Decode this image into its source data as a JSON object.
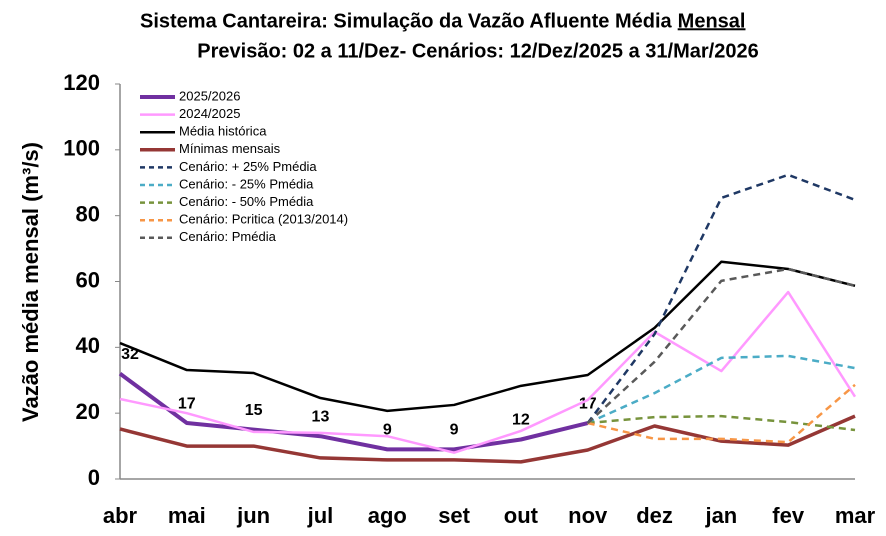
{
  "chart_data": {
    "type": "line",
    "title": "Sistema Cantareira: Simulação da Vazão Afluente Média",
    "title_underlined": "Mensal",
    "subtitle": "Previsão: 02 a 11/Dez- Cenários: 12/Dez/2025 a 31/Mar/2026",
    "y_label": "Vazão média mensal (m³/s)",
    "categories": [
      "abr",
      "mai",
      "jun",
      "jul",
      "ago",
      "set",
      "out",
      "nov",
      "dez",
      "jan",
      "fev",
      "mar"
    ],
    "ylim": [
      0,
      120
    ],
    "yticks": [
      0,
      20,
      40,
      60,
      80,
      100,
      120
    ],
    "grid": false,
    "legend": "upper left",
    "series": [
      {
        "name": "2025/2026",
        "color": "#7030a0",
        "width": 4,
        "dashed": false,
        "values": [
          32,
          17,
          15,
          13,
          9,
          9,
          12,
          17,
          null,
          null,
          null,
          null
        ],
        "value_labels": [
          "32",
          "17",
          "15",
          "13",
          "9",
          "9",
          "12",
          "17",
          null,
          null,
          null,
          null
        ]
      },
      {
        "name": "2024/2025",
        "color": "#ff99ff",
        "width": 2.5,
        "dashed": false,
        "values": [
          24.3,
          20,
          14.3,
          14,
          13,
          8,
          14.6,
          24,
          44.7,
          32.8,
          56.8,
          25
        ]
      },
      {
        "name": "Média histórica",
        "color": "#000000",
        "width": 2.5,
        "dashed": false,
        "values": [
          41.3,
          33.1,
          32.2,
          24.6,
          20.7,
          22.5,
          28.3,
          31.6,
          45.9,
          66,
          63.8,
          58.7
        ]
      },
      {
        "name": "Mínimas mensais",
        "color": "#953735",
        "width": 3.5,
        "dashed": false,
        "values": [
          15.2,
          10,
          10,
          6.4,
          5.8,
          5.8,
          5.2,
          8.8,
          16.1,
          11.5,
          10.3,
          19.1
        ]
      },
      {
        "name": "Cenário: + 25% Pmédia",
        "color": "#1f3864",
        "width": 2.5,
        "dashed": true,
        "values": [
          null,
          null,
          null,
          null,
          null,
          null,
          null,
          17,
          44,
          85.4,
          92.4,
          84.8
        ]
      },
      {
        "name": "Cenário: - 25% Pmédia",
        "color": "#4bacc6",
        "width": 2.5,
        "dashed": true,
        "values": [
          null,
          null,
          null,
          null,
          null,
          null,
          null,
          17,
          26.1,
          36.8,
          37.4,
          33.7
        ]
      },
      {
        "name": "Cenário: - 50% Pmédia",
        "color": "#77933c",
        "width": 2.5,
        "dashed": true,
        "values": [
          null,
          null,
          null,
          null,
          null,
          null,
          null,
          17,
          18.8,
          19.1,
          17.3,
          14.9
        ]
      },
      {
        "name": "Cenário: Pcritica (2013/2014)",
        "color": "#f79646",
        "width": 2.5,
        "dashed": true,
        "values": [
          null,
          null,
          null,
          null,
          null,
          null,
          null,
          17,
          12.2,
          12.2,
          11.2,
          28.6
        ]
      },
      {
        "name": "Cenário: Pmédia",
        "color": "#595959",
        "width": 2.5,
        "dashed": true,
        "values": [
          null,
          null,
          null,
          null,
          null,
          null,
          null,
          17,
          35.6,
          60.2,
          63.8,
          58.7
        ]
      }
    ]
  }
}
